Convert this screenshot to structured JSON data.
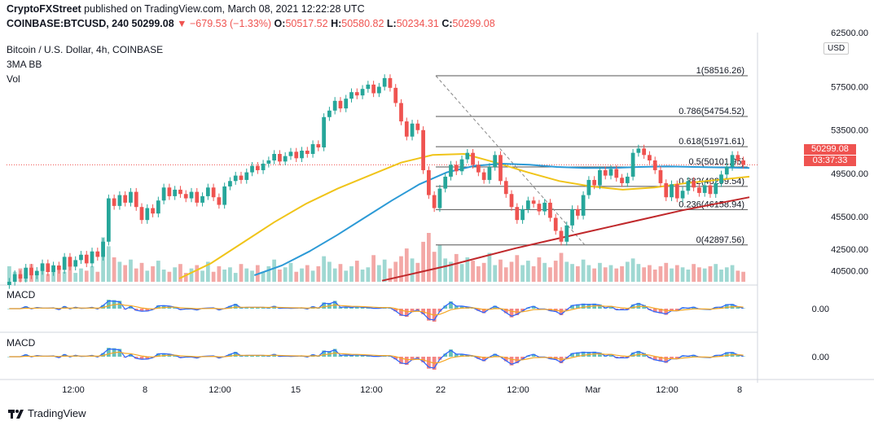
{
  "header": {
    "publisher": "CryptoFXStreet",
    "published_text": "published on TradingView.com, March 08, 2021 12:22:28 UTC",
    "symbol": "COINBASE:BTCUSD, 240",
    "last": "50299.08",
    "change": "▼ −679.53 (−1.33%)",
    "o_label": "O:",
    "o_value": "50517.52",
    "h_label": "H:",
    "h_value": "50580.82",
    "l_label": "L:",
    "l_value": "50234.31",
    "c_label": "C:",
    "c_value": "50299.08"
  },
  "legend": {
    "title": "Bitcoin / U.S. Dollar, 4h, COINBASE",
    "indicator1": "3MA BB",
    "indicator2": "Vol",
    "macd1": "MACD",
    "macd2": "MACD"
  },
  "price_box": {
    "price": "50299.08",
    "countdown": "03:37:33"
  },
  "currency": "USD",
  "brand": "TradingView",
  "colors": {
    "up": "#26a69a",
    "down": "#ef5350",
    "ma_fast": "#f0c419",
    "ma_mid": "#2c9ad6",
    "ma_slow": "#c0282b",
    "macd_line": "#2962ff",
    "signal_line": "#f5a623"
  },
  "chart_data": {
    "type": "line",
    "title": "Bitcoin / U.S. Dollar, 4h, COINBASE",
    "ylim": [
      39500,
      62500
    ],
    "y_ticks": [
      "62500.00",
      "57500.00",
      "53500.00",
      "49500.00",
      "45500.00",
      "42500.00",
      "40500.00"
    ],
    "y_tick_values": [
      62500,
      57500,
      53500,
      49500,
      45500,
      42500,
      40500
    ],
    "x_ticks": [
      "12:00",
      "8",
      "12:00",
      "15",
      "12:00",
      "22",
      "12:00",
      "Mar",
      "12:00",
      "8"
    ],
    "fibonacci": [
      {
        "label": "1(58516.26)",
        "value": 58516.26
      },
      {
        "label": "0.786(54754.52)",
        "value": 54754.52
      },
      {
        "label": "0.618(51971.61)",
        "value": 51971.61
      },
      {
        "label": "0.5(50101.95)",
        "value": 50101.95
      },
      {
        "label": "0.382(48299.54)",
        "value": 48299.54
      },
      {
        "label": "0.236(46158.94)",
        "value": 46158.94
      },
      {
        "label": "0(42897.56)",
        "value": 42897.56
      }
    ],
    "series": [
      {
        "name": "Price",
        "values": [
          39500,
          40200,
          39800,
          40800,
          40100,
          40500,
          41200,
          40400,
          41000,
          40600,
          41800,
          40900,
          41500,
          42000,
          41200,
          42300,
          41800,
          43200,
          47200,
          46500,
          47500,
          46800,
          47800,
          46400,
          45200,
          46300,
          45800,
          47000,
          48200,
          47400,
          48000,
          47600,
          47200,
          47800,
          46800,
          47400,
          48200,
          47300,
          46600,
          48300,
          48800,
          49300,
          48900,
          49600,
          50200,
          49800,
          50400,
          50700,
          51300,
          50600,
          51100,
          51500,
          50900,
          51600,
          51300,
          52200,
          51900,
          54700,
          55300,
          56200,
          55500,
          56400,
          57000,
          56700,
          57300,
          57700,
          56900,
          57500,
          58300,
          57400,
          56000,
          54300,
          52900,
          54100,
          53500,
          49800,
          47500,
          46300,
          48100,
          49200,
          50300,
          49700,
          50800,
          51400,
          50300,
          49600,
          48900,
          50100,
          51200,
          48800,
          47600,
          46400,
          45200,
          46200,
          47000,
          46700,
          46000,
          46800,
          45400,
          44200,
          43200,
          44700,
          46200,
          45600,
          47500,
          48900,
          48400,
          49800,
          49300,
          49900,
          49100,
          48600,
          49200,
          51400,
          51800,
          51200,
          50700,
          49800,
          48600,
          47300,
          48500,
          47200,
          47900,
          48800,
          48200,
          47700,
          48400,
          47600,
          48600,
          49400,
          50100,
          51200,
          50700,
          50299
        ]
      },
      {
        "name": "",
        "values": [
          39800,
          41200,
          43100,
          45000,
          46700,
          48100,
          49300,
          50500,
          51200,
          51300,
          50500,
          49600,
          48800,
          48300,
          48000,
          48200,
          48600,
          48900,
          49200
        ]
      },
      {
        "name": "",
        "values": [
          40100,
          41000,
          42300,
          43800,
          45400,
          47000,
          48500,
          49600,
          50200,
          50400,
          50300,
          50100,
          50000,
          50000,
          50100,
          50150,
          50100,
          50050,
          50000
        ]
      },
      {
        "name": "",
        "values": [
          39600,
          40300,
          41000,
          41800,
          42600,
          43300,
          44000,
          44700,
          45400,
          46100,
          46700,
          47300
        ]
      }
    ],
    "volume": [
      14,
      9,
      12,
      8,
      16,
      10,
      13,
      7,
      15,
      11,
      9,
      17,
      8,
      12,
      10,
      14,
      9,
      40,
      32,
      22,
      18,
      15,
      20,
      12,
      17,
      10,
      14,
      19,
      11,
      9,
      13,
      16,
      8,
      12,
      15,
      10,
      18,
      9,
      14,
      11,
      13,
      8,
      16,
      12,
      10,
      15,
      9,
      14,
      20,
      11,
      13,
      17,
      9,
      12,
      15,
      10,
      14,
      23,
      18,
      12,
      16,
      10,
      14,
      19,
      11,
      13,
      24,
      15,
      20,
      12,
      18,
      23,
      30,
      21,
      17,
      36,
      44,
      27,
      33,
      21,
      18,
      25,
      16,
      22,
      19,
      14,
      17,
      26,
      15,
      20,
      13,
      18,
      24,
      15,
      19,
      14,
      22,
      17,
      13,
      19,
      26,
      18,
      16,
      14,
      20,
      15,
      12,
      17,
      13,
      15,
      12,
      14,
      18,
      21,
      16,
      13,
      15,
      11,
      14,
      17,
      12,
      15,
      13,
      11,
      16,
      13,
      12,
      14,
      16,
      11,
      13,
      15,
      10,
      9
    ],
    "macd1_ticks": [
      "0.00"
    ],
    "macd2_ticks": [
      "0.00"
    ]
  }
}
